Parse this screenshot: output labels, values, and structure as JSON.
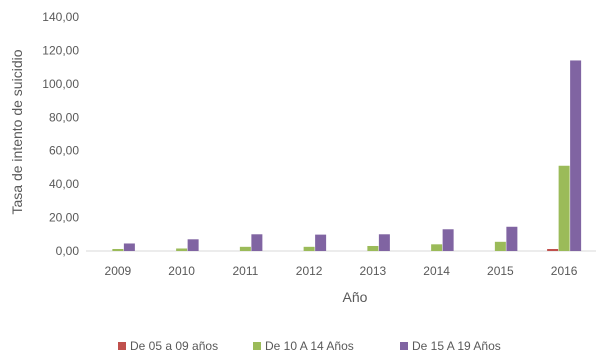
{
  "chart_data": {
    "type": "bar",
    "categories": [
      "2009",
      "2010",
      "2011",
      "2012",
      "2013",
      "2014",
      "2015",
      "2016"
    ],
    "series": [
      {
        "name": "De 05 a 09 años",
        "color": "#c0504d",
        "values": [
          0,
          0,
          0,
          0,
          0,
          0,
          0,
          1.2
        ]
      },
      {
        "name": "De 10 A 14 Años",
        "color": "#9bbb59",
        "values": [
          1.2,
          1.5,
          2.5,
          2.5,
          3.0,
          4.0,
          5.5,
          51.0
        ]
      },
      {
        "name": "De 15 A 19 Años",
        "color": "#8064a2",
        "values": [
          4.5,
          7.0,
          10.0,
          9.8,
          10.0,
          13.0,
          14.5,
          114.0
        ]
      }
    ],
    "y_ticks": [
      "0,00",
      "20,00",
      "40,00",
      "60,00",
      "80,00",
      "100,00",
      "120,00",
      "140,00"
    ],
    "ylim": [
      0,
      140
    ],
    "xlabel": "Año",
    "ylabel": "Tasa de intento de suicidio",
    "legend_position": "bottom",
    "grid": false
  }
}
